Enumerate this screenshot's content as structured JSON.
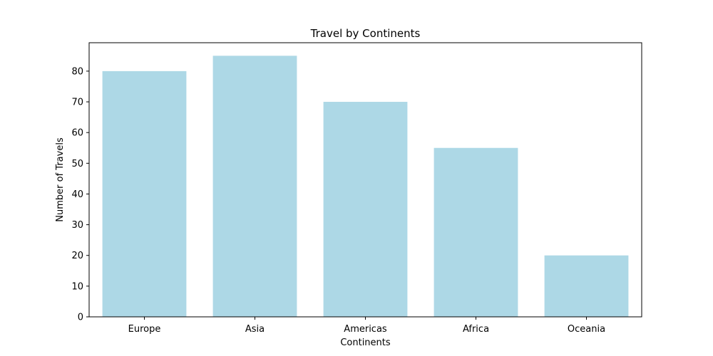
{
  "chart_data": {
    "type": "bar",
    "title": "Travel by Continents",
    "xlabel": "Continents",
    "ylabel": "Number of Travels",
    "categories": [
      "Europe",
      "Asia",
      "Americas",
      "Africa",
      "Oceania"
    ],
    "values": [
      80,
      85,
      70,
      55,
      20
    ],
    "ylim": [
      0,
      89.25
    ],
    "yticks": [
      0,
      10,
      20,
      30,
      40,
      50,
      60,
      70,
      80
    ],
    "bar_color": "#add8e6",
    "grid": false,
    "legend": "none"
  }
}
